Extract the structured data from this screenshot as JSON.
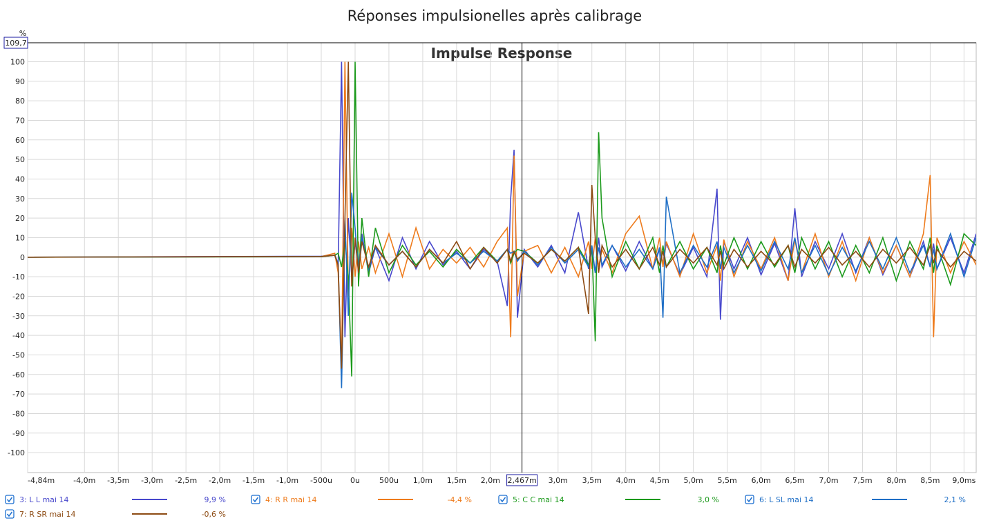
{
  "chart_data": {
    "type": "line",
    "title": "Réponses impulsionelles après calibrage",
    "subtitle": "Impulse Response",
    "y_unit": "%",
    "ylim_label": "109,7",
    "cursor": {
      "x": 2.467,
      "x_label": "2,467m"
    },
    "xlim": [
      -4.84,
      9.18
    ],
    "ylim": [
      -110.2,
      109.7
    ],
    "grid": true,
    "xticks": [
      {
        "value": -4.84,
        "label": "-4,84m"
      },
      {
        "value": -4.0,
        "label": "-4,0m"
      },
      {
        "value": -3.5,
        "label": "-3,5m"
      },
      {
        "value": -3.0,
        "label": "-3,0m"
      },
      {
        "value": -2.5,
        "label": "-2,5m"
      },
      {
        "value": -2.0,
        "label": "-2,0m"
      },
      {
        "value": -1.5,
        "label": "-1,5m"
      },
      {
        "value": -1.0,
        "label": "-1,0m"
      },
      {
        "value": -0.5,
        "label": "-500u"
      },
      {
        "value": 0,
        "label": "0u"
      },
      {
        "value": 0.5,
        "label": "500u"
      },
      {
        "value": 1.0,
        "label": "1,0m"
      },
      {
        "value": 1.5,
        "label": "1,5m"
      },
      {
        "value": 2.0,
        "label": "2,0m"
      },
      {
        "value": 3.0,
        "label": "3,0m"
      },
      {
        "value": 3.5,
        "label": "3,5m"
      },
      {
        "value": 4.0,
        "label": "4,0m"
      },
      {
        "value": 4.5,
        "label": "4,5m"
      },
      {
        "value": 5.0,
        "label": "5,0m"
      },
      {
        "value": 5.5,
        "label": "5,5m"
      },
      {
        "value": 6.0,
        "label": "6,0m"
      },
      {
        "value": 6.5,
        "label": "6,5m"
      },
      {
        "value": 7.0,
        "label": "7,0m"
      },
      {
        "value": 7.5,
        "label": "7,5m"
      },
      {
        "value": 8.0,
        "label": "8,0m"
      },
      {
        "value": 8.5,
        "label": "8,5m"
      },
      {
        "value": 9.0,
        "label": "9,0ms"
      }
    ],
    "yticks": [
      100,
      90,
      80,
      70,
      60,
      50,
      40,
      30,
      20,
      10,
      0,
      -10,
      -20,
      -30,
      -40,
      -50,
      -60,
      -70,
      -80,
      -90,
      -100
    ],
    "x": [
      -4.84,
      -0.5,
      -0.3,
      -0.25,
      -0.2,
      -0.15,
      -0.1,
      -0.05,
      0,
      0.05,
      0.1,
      0.2,
      0.3,
      0.5,
      0.7,
      0.9,
      1.1,
      1.3,
      1.5,
      1.7,
      1.9,
      2.1,
      2.25,
      2.3,
      2.35,
      2.4,
      2.5,
      2.7,
      2.9,
      3.1,
      3.3,
      3.45,
      3.5,
      3.55,
      3.6,
      3.65,
      3.8,
      4.0,
      4.2,
      4.4,
      4.5,
      4.55,
      4.6,
      4.8,
      5.0,
      5.2,
      5.35,
      5.4,
      5.45,
      5.6,
      5.8,
      6.0,
      6.2,
      6.4,
      6.5,
      6.6,
      6.8,
      7.0,
      7.2,
      7.4,
      7.6,
      7.8,
      8.0,
      8.2,
      8.4,
      8.5,
      8.55,
      8.6,
      8.8,
      9.0,
      9.18
    ],
    "series": [
      {
        "name": "3: L L mai 14",
        "color": "#4848cc",
        "cursor_value": 9.9,
        "cursor_value_label": "9,9 %",
        "values": [
          0,
          0.5,
          1,
          -5,
          100,
          -41,
          20,
          -10,
          8,
          -5,
          12,
          -8,
          5,
          -12,
          10,
          -6,
          8,
          -4,
          3,
          -6,
          4,
          -2,
          -25,
          30,
          55,
          -31,
          4,
          -5,
          6,
          -8,
          23,
          -6,
          4,
          -8,
          10,
          -5,
          6,
          -7,
          8,
          -6,
          4,
          -3,
          7,
          -9,
          5,
          -10,
          35,
          -32,
          8,
          -6,
          10,
          -9,
          7,
          -12,
          25,
          -10,
          8,
          -6,
          12,
          -8,
          10,
          -9,
          6,
          -10,
          8,
          -5,
          7,
          -6,
          10,
          -8,
          12
        ]
      },
      {
        "name": "4: R R mai 14",
        "color": "#ee7b1c",
        "cursor_value": -4.4,
        "cursor_value_label": "-4,4 %",
        "values": [
          0,
          0.3,
          2,
          -8,
          -57,
          100,
          -20,
          15,
          -10,
          8,
          -6,
          5,
          -8,
          12,
          -10,
          15,
          -6,
          4,
          -3,
          5,
          -5,
          8,
          15,
          -41,
          52,
          -20,
          3,
          6,
          -8,
          5,
          -10,
          8,
          -6,
          10,
          -5,
          4,
          -8,
          12,
          21,
          -6,
          10,
          -5,
          8,
          -10,
          12,
          -8,
          6,
          -12,
          9,
          -10,
          8,
          -6,
          10,
          -12,
          9,
          -8,
          12,
          -10,
          8,
          -12,
          10,
          -8,
          6,
          -10,
          12,
          42,
          -41,
          10,
          -8,
          8,
          -4
        ]
      },
      {
        "name": "5: C C mai 14",
        "color": "#1c9a1c",
        "cursor_value": 3.0,
        "cursor_value_label": "3,0 %",
        "values": [
          0,
          0.2,
          1,
          2,
          -5,
          8,
          -10,
          -61,
          100,
          -15,
          20,
          -10,
          15,
          -8,
          6,
          -4,
          3,
          -5,
          4,
          -3,
          5,
          -2,
          4,
          -3,
          2,
          4,
          3,
          -3,
          4,
          -2,
          5,
          -4,
          6,
          -43,
          64,
          20,
          -10,
          8,
          -6,
          10,
          -8,
          6,
          -5,
          8,
          -6,
          5,
          -8,
          6,
          -4,
          10,
          -6,
          8,
          -5,
          6,
          -8,
          10,
          -6,
          8,
          -10,
          6,
          -8,
          10,
          -12,
          8,
          -6,
          10,
          -8,
          6,
          -14,
          12,
          6
        ]
      },
      {
        "name": "6: L SL mai 14",
        "color": "#1f6fc6",
        "cursor_value": 2.1,
        "cursor_value_label": "2,1 %",
        "values": [
          0,
          0.3,
          1,
          -3,
          -67,
          20,
          -30,
          33,
          15,
          -8,
          10,
          -6,
          5,
          -4,
          3,
          -5,
          4,
          -3,
          2,
          -3,
          3,
          -2,
          4,
          2,
          3,
          -2,
          3,
          -4,
          5,
          -3,
          4,
          -5,
          6,
          -8,
          5,
          -4,
          6,
          -5,
          4,
          -6,
          5,
          -31,
          31,
          -8,
          6,
          -5,
          8,
          -6,
          5,
          -8,
          6,
          -7,
          8,
          -6,
          10,
          -8,
          6,
          -9,
          5,
          -7,
          8,
          -6,
          10,
          -8,
          6,
          -5,
          4,
          -6,
          12,
          -10,
          10
        ]
      },
      {
        "name": "7: R SR mai 14",
        "color": "#8c4a12",
        "cursor_value": -0.6,
        "cursor_value_label": "-0,6 %",
        "values": [
          0,
          0.3,
          1,
          -4,
          -57,
          20,
          100,
          -15,
          10,
          -8,
          8,
          -5,
          6,
          -4,
          3,
          -5,
          4,
          -3,
          8,
          -6,
          5,
          -3,
          4,
          -2,
          3,
          -1,
          2,
          -3,
          4,
          -2,
          5,
          -29,
          37,
          10,
          -8,
          6,
          -5,
          4,
          -6,
          5,
          -4,
          3,
          -5,
          4,
          -3,
          5,
          -4,
          3,
          -6,
          4,
          -5,
          3,
          -4,
          6,
          -5,
          4,
          -3,
          5,
          -4,
          3,
          -5,
          4,
          -3,
          5,
          -4,
          6,
          -3,
          4,
          -5,
          3,
          -2
        ]
      }
    ]
  }
}
